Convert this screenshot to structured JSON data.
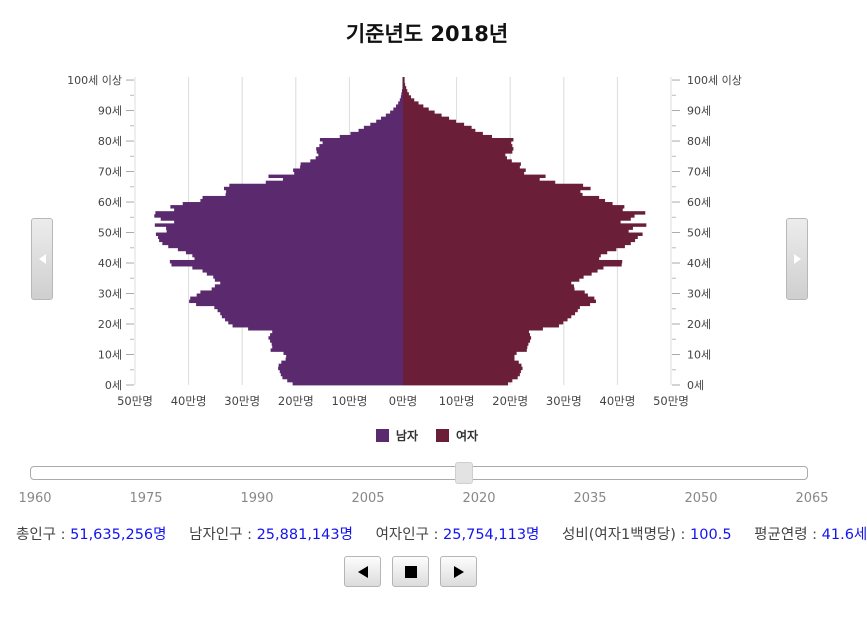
{
  "title": "기준년도 2018년",
  "chart_data": {
    "type": "bar",
    "orientation": "horizontal-population-pyramid",
    "title": "기준년도 2018년",
    "age_axis_ticks": [
      "0세",
      "10세",
      "20세",
      "30세",
      "40세",
      "50세",
      "60세",
      "70세",
      "80세",
      "90세",
      "100세 이상"
    ],
    "x_ticks": [
      "50만명",
      "40만명",
      "30만명",
      "20만명",
      "10만명",
      "0만명",
      "10만명",
      "20만명",
      "30만명",
      "40만명",
      "50만명"
    ],
    "xlim": [
      -50,
      50
    ],
    "unit": "만명",
    "grid": true,
    "legend_position": "bottom",
    "colors": {
      "male": "#5b2a6e",
      "female": "#6b1e38"
    },
    "series": [
      {
        "name": "남자",
        "key": "male",
        "values": [
          20.6,
          21.6,
          22.5,
          22.8,
          23.0,
          23.3,
          23.2,
          22.7,
          21.9,
          21.8,
          22.3,
          24.7,
          24.4,
          24.5,
          24.8,
          25.1,
          24.8,
          24.4,
          28.9,
          31.8,
          32.6,
          33.2,
          33.8,
          34.1,
          34.6,
          35.2,
          38.6,
          39.9,
          39.7,
          38.5,
          37.8,
          35.7,
          35.1,
          34.1,
          35.1,
          35.4,
          36.6,
          37.4,
          39.3,
          43.2,
          43.5,
          38.9,
          39.3,
          40.5,
          42.0,
          43.8,
          44.9,
          45.5,
          45.7,
          46.1,
          44.1,
          44.2,
          46.3,
          42.7,
          45.2,
          46.4,
          46.2,
          42.7,
          43.4,
          41.1,
          37.8,
          37.4,
          33.1,
          33.0,
          33.4,
          32.4,
          25.6,
          22.4,
          25.1,
          20.3,
          20.5,
          19.2,
          19.1,
          17.3,
          16.3,
          15.8,
          16.1,
          16.2,
          15.6,
          15.0,
          15.5,
          11.8,
          9.8,
          8.3,
          7.3,
          6.1,
          5.0,
          4.1,
          3.2,
          2.4,
          1.8,
          1.3,
          0.9,
          0.6,
          0.4,
          0.3,
          0.2,
          0.1,
          0.1,
          0.1,
          0.1
        ],
        "values_note": ""
      },
      {
        "name": "여자",
        "key": "female",
        "values": [
          19.6,
          20.4,
          21.4,
          21.8,
          22.0,
          22.3,
          22.1,
          21.6,
          20.8,
          20.8,
          21.2,
          23.1,
          23.2,
          23.4,
          23.7,
          23.9,
          23.7,
          23.5,
          26.1,
          29.1,
          29.9,
          30.7,
          31.4,
          32.1,
          32.6,
          33.0,
          34.9,
          36.0,
          35.7,
          34.5,
          33.9,
          32.0,
          31.9,
          31.4,
          32.9,
          33.7,
          35.2,
          36.3,
          37.4,
          40.8,
          40.9,
          36.6,
          36.9,
          38.1,
          39.8,
          41.4,
          42.5,
          43.3,
          43.8,
          44.7,
          42.1,
          42.9,
          45.4,
          40.6,
          42.5,
          43.2,
          45.2,
          41.0,
          41.3,
          39.1,
          37.7,
          36.6,
          33.5,
          33.1,
          35.0,
          33.6,
          28.4,
          25.5,
          26.6,
          22.6,
          22.9,
          21.8,
          22.0,
          20.3,
          19.4,
          19.1,
          20.4,
          20.6,
          20.4,
          20.2,
          20.6,
          16.6,
          14.9,
          13.5,
          12.8,
          11.4,
          9.9,
          8.6,
          7.2,
          5.9,
          4.8,
          3.8,
          2.9,
          2.1,
          1.5,
          1.1,
          0.8,
          0.6,
          0.4,
          0.3,
          0.3
        ]
      }
    ]
  },
  "nav": {
    "prev_icon": "chevron-left-icon",
    "next_icon": "chevron-right-icon"
  },
  "slider": {
    "ticks": [
      "1960",
      "1975",
      "1990",
      "2005",
      "2020",
      "2035",
      "2050",
      "2065"
    ],
    "min_year": 1960,
    "max_year": 2065,
    "current_year": 2018
  },
  "stats": {
    "total_label": "총인구 :",
    "total_value": "51,635,256명",
    "male_label": "남자인구 :",
    "male_value": "25,881,143명",
    "female_label": "여자인구 :",
    "female_value": "25,754,113명",
    "ratio_label": "성비(여자1백명당) :",
    "ratio_value": "100.5",
    "age_label": "평균연령 :",
    "age_value": "41.6세"
  },
  "controls": {
    "prev_icon": "play-back-icon",
    "stop_icon": "stop-icon",
    "play_icon": "play-icon"
  }
}
